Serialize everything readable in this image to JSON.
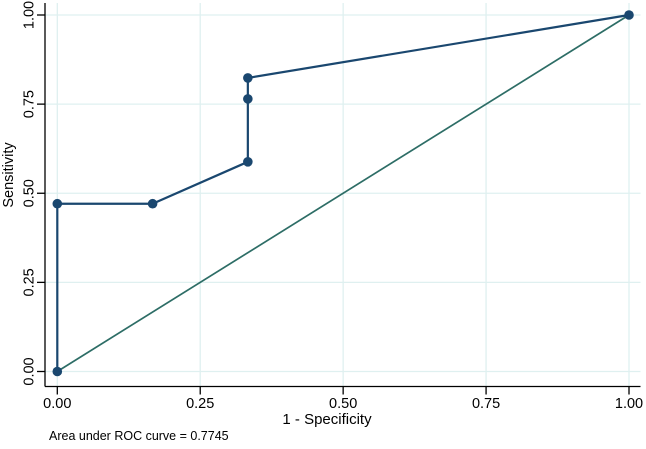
{
  "chart_data": {
    "type": "line",
    "title": "",
    "xlabel": "1 - Specificity",
    "ylabel": "Sensitivity",
    "note": "Area under ROC curve = 0.7745",
    "auc": 0.7745,
    "xlim": [
      0,
      1
    ],
    "ylim": [
      0,
      1
    ],
    "grid": true,
    "legend": "none",
    "x_ticks": [
      "0.00",
      "0.25",
      "0.50",
      "0.75",
      "1.00"
    ],
    "y_ticks": [
      "0.00",
      "0.25",
      "0.50",
      "0.75",
      "1.00"
    ],
    "series": [
      {
        "id": "roc-curve",
        "name": "ROC curve",
        "color": "#1a476f",
        "line_width": 2.2,
        "marker": "circle",
        "marker_radius": 4.8,
        "points": [
          [
            0,
            0
          ],
          [
            0,
            0.4706
          ],
          [
            0.1667,
            0.4706
          ],
          [
            0.3333,
            0.5882
          ],
          [
            0.3333,
            0.7647
          ],
          [
            0.3333,
            0.8235
          ],
          [
            1,
            1
          ]
        ]
      },
      {
        "id": "reference-line",
        "name": "45-degree reference line",
        "color": "#2d6d66",
        "line_width": 1.7,
        "marker": "none",
        "points": [
          [
            0,
            0
          ],
          [
            1,
            1
          ]
        ]
      }
    ],
    "colors": {
      "background": "#ffffff",
      "grid": "#dff0f0",
      "axis": "#000000",
      "text": "#000000"
    }
  }
}
